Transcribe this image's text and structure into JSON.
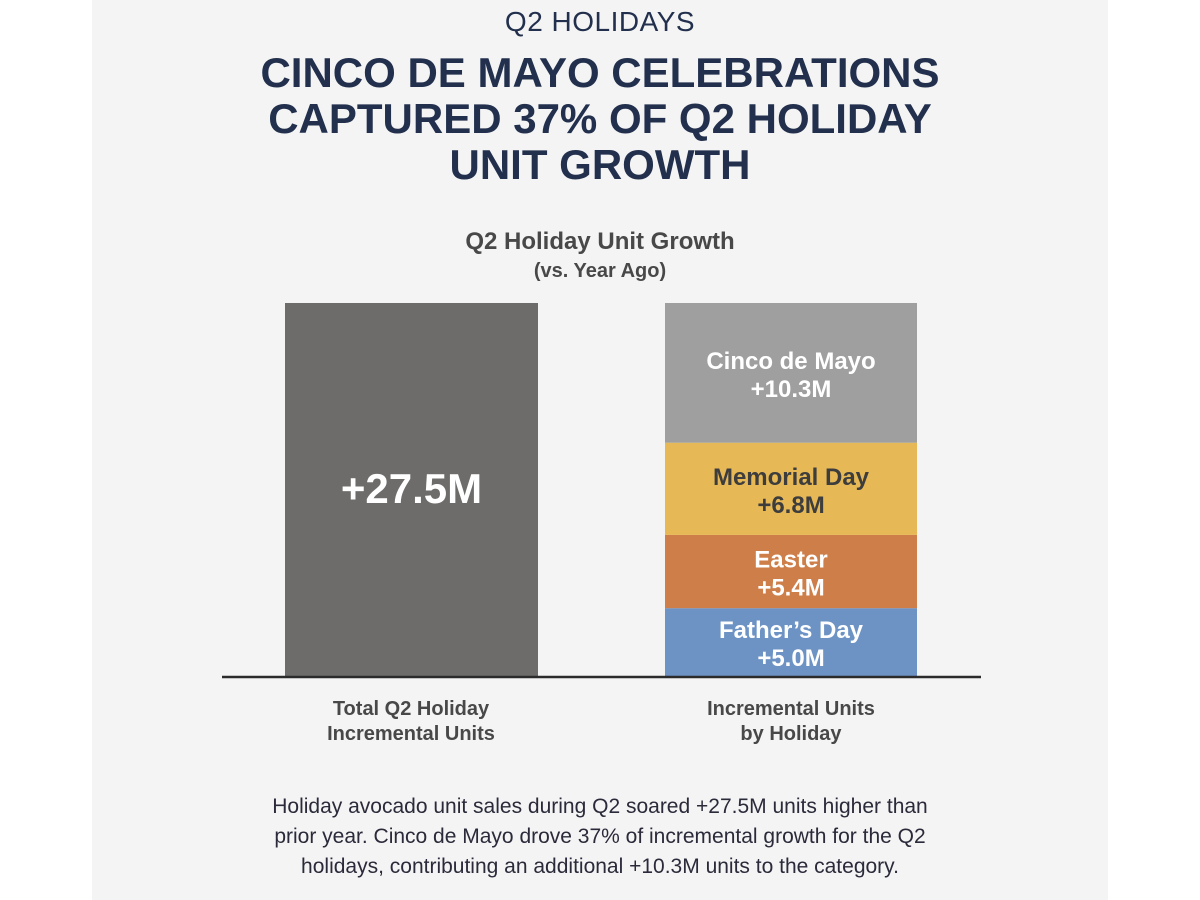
{
  "header": {
    "eyebrow": "Q2 HOLIDAYS",
    "headline_lines": [
      "CINCO DE MAYO CELEBRATIONS",
      "CAPTURED 37% OF Q2 HOLIDAY",
      "UNIT GROWTH"
    ]
  },
  "chart_data": {
    "type": "bar",
    "title": "Q2 Holiday Unit Growth",
    "subtitle": "(vs. Year Ago)",
    "unit": "M units",
    "ylim": [
      0,
      27.5
    ],
    "grid": false,
    "legend": "none",
    "categories": [
      "Total Q2 Holiday Incremental Units",
      "Incremental Units by Holiday"
    ],
    "category_label_lines": [
      [
        "Total Q2 Holiday",
        "Incremental Units"
      ],
      [
        "Incremental Units",
        "by Holiday"
      ]
    ],
    "total": {
      "value": 27.5,
      "label": "+27.5M",
      "color": "#6d6c6a"
    },
    "stack": [
      {
        "name": "Father’s Day",
        "value": 5.0,
        "label": "+5.0M",
        "color": "#6d93c5",
        "text_color": "#ffffff"
      },
      {
        "name": "Easter",
        "value": 5.4,
        "label": "+5.4M",
        "color": "#cd7e49",
        "text_color": "#ffffff"
      },
      {
        "name": "Memorial Day",
        "value": 6.8,
        "label": "+6.8M",
        "color": "#e7b956",
        "text_color": "#3d3d3d"
      },
      {
        "name": "Cinco de Mayo",
        "value": 10.3,
        "label": "+10.3M",
        "color": "#9f9f9f",
        "text_color": "#ffffff"
      }
    ]
  },
  "caption_lines": [
    "Holiday avocado unit sales during Q2 soared +27.5M units higher than",
    "prior year. Cinco de Mayo drove 37% of incremental growth for the Q2",
    "holidays, contributing an additional +10.3M units to the category."
  ]
}
